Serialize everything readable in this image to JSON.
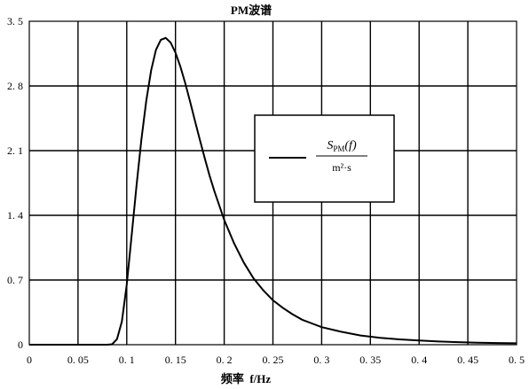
{
  "chart_data": {
    "type": "line",
    "title": "PM波谱",
    "xlabel": "频率  f/Hz",
    "ylabel": "",
    "xlim": [
      0,
      0.5
    ],
    "ylim": [
      0,
      3.5
    ],
    "xticks": [
      0,
      0.05,
      0.1,
      0.15,
      0.2,
      0.25,
      0.3,
      0.35,
      0.4,
      0.45,
      0.5
    ],
    "xtick_labels": [
      "0",
      "0. 05",
      "0. 1",
      "0. 15",
      "0. 2",
      "0. 25",
      "0. 3",
      "0. 35",
      "0. 4",
      "0. 45",
      "0. 5"
    ],
    "yticks": [
      0,
      0.7,
      1.4,
      2.1,
      2.8,
      3.5
    ],
    "ytick_labels": [
      "0",
      "0. 7",
      "1. 4",
      "2. 1",
      "2. 8",
      "3. 5"
    ],
    "grid": true,
    "legend": {
      "placement": "center-right",
      "numerator": "S",
      "numerator_sub": "PM",
      "numerator_arg": "(f)",
      "denominator": "m²·s"
    },
    "series": [
      {
        "color": "#000000",
        "x": [
          0.0,
          0.08,
          0.085,
          0.09,
          0.095,
          0.1,
          0.105,
          0.11,
          0.115,
          0.12,
          0.125,
          0.13,
          0.135,
          0.14,
          0.145,
          0.15,
          0.155,
          0.16,
          0.165,
          0.17,
          0.175,
          0.18,
          0.185,
          0.19,
          0.2,
          0.21,
          0.22,
          0.23,
          0.24,
          0.25,
          0.26,
          0.27,
          0.28,
          0.29,
          0.3,
          0.32,
          0.34,
          0.36,
          0.38,
          0.4,
          0.42,
          0.44,
          0.46,
          0.48,
          0.5
        ],
        "y": [
          0.0,
          0.0,
          0.005,
          0.06,
          0.25,
          0.65,
          1.18,
          1.72,
          2.22,
          2.64,
          2.97,
          3.19,
          3.3,
          3.32,
          3.27,
          3.16,
          3.01,
          2.83,
          2.63,
          2.42,
          2.22,
          2.02,
          1.83,
          1.66,
          1.35,
          1.1,
          0.89,
          0.72,
          0.59,
          0.48,
          0.4,
          0.33,
          0.27,
          0.23,
          0.19,
          0.14,
          0.1,
          0.075,
          0.058,
          0.045,
          0.035,
          0.028,
          0.022,
          0.018,
          0.015
        ]
      }
    ]
  }
}
